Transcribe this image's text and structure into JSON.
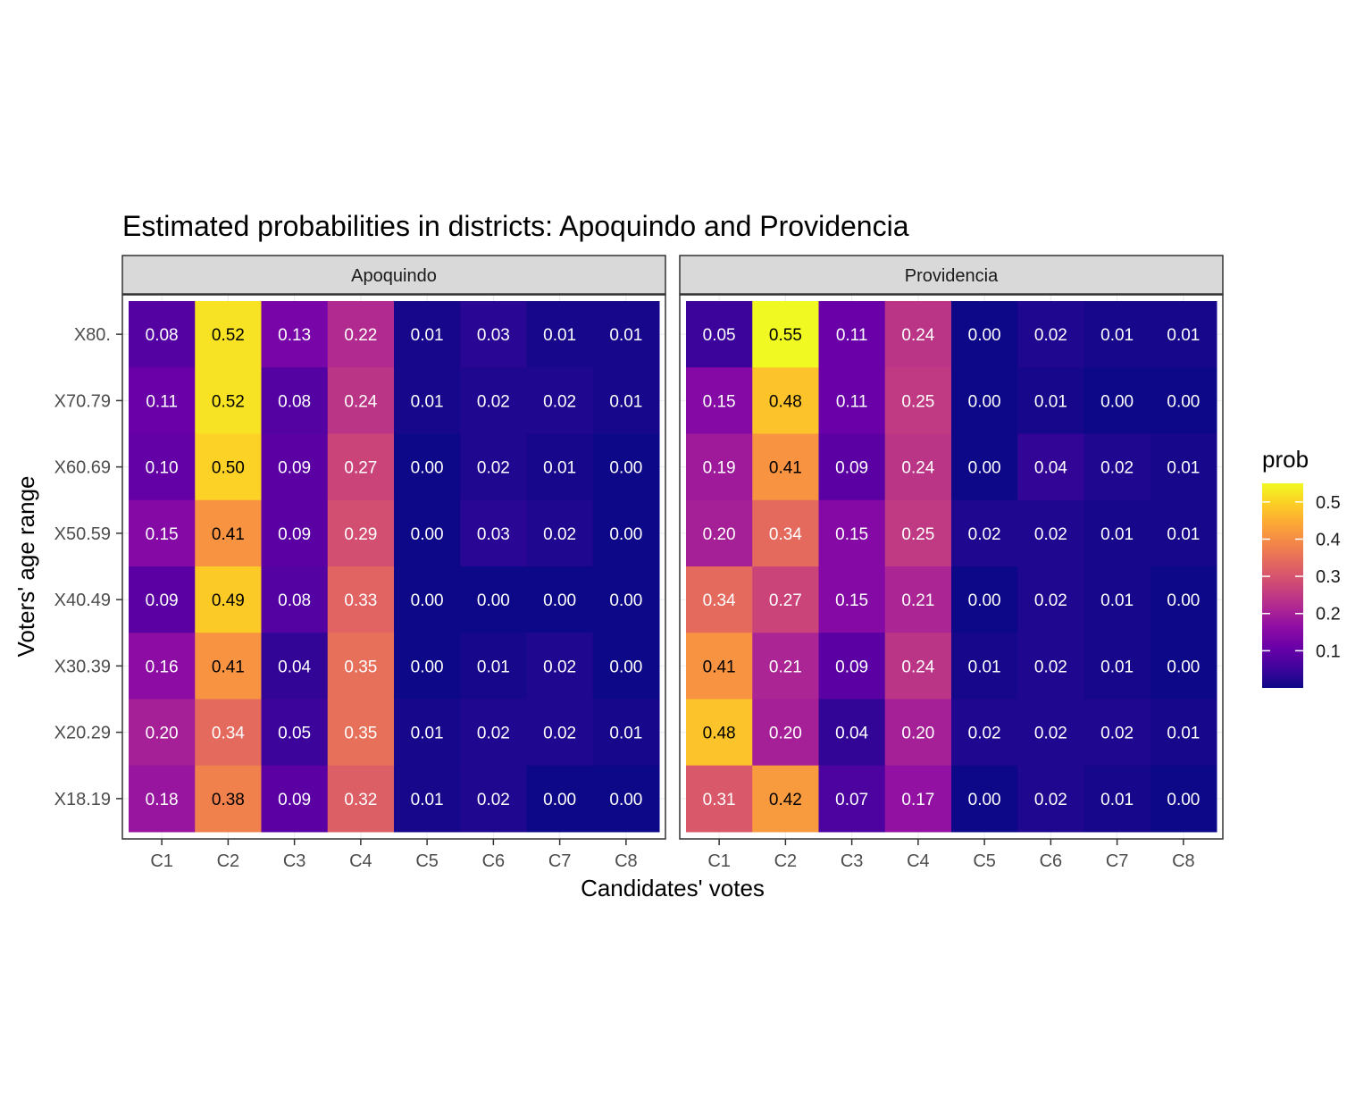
{
  "chart_data": {
    "type": "heatmap",
    "title": "Estimated probabilities in districts: Apoquindo and Providencia",
    "xlabel": "Candidates' votes",
    "ylabel": "Voters' age range",
    "x_categories": [
      "C1",
      "C2",
      "C3",
      "C4",
      "C5",
      "C6",
      "C7",
      "C8"
    ],
    "y_categories": [
      "X80.",
      "X70.79",
      "X60.69",
      "X50.59",
      "X40.49",
      "X30.39",
      "X20.29",
      "X18.19"
    ],
    "legend": {
      "title": "prob",
      "placement": "right",
      "ticks": [
        0.1,
        0.2,
        0.3,
        0.4,
        0.5
      ],
      "tick_labels": [
        "0.1",
        "0.2",
        "0.3",
        "0.4",
        "0.5"
      ],
      "range": [
        0.0,
        0.55
      ],
      "colormap": "plasma"
    },
    "panels": [
      {
        "name": "Apoquindo",
        "values": [
          [
            0.08,
            0.52,
            0.13,
            0.22,
            0.01,
            0.03,
            0.01,
            0.01
          ],
          [
            0.11,
            0.52,
            0.08,
            0.24,
            0.01,
            0.02,
            0.02,
            0.01
          ],
          [
            0.1,
            0.5,
            0.09,
            0.27,
            0.0,
            0.02,
            0.01,
            0.0
          ],
          [
            0.15,
            0.41,
            0.09,
            0.29,
            0.0,
            0.03,
            0.02,
            0.0
          ],
          [
            0.09,
            0.49,
            0.08,
            0.33,
            0.0,
            0.0,
            0.0,
            0.0
          ],
          [
            0.16,
            0.41,
            0.04,
            0.35,
            0.0,
            0.01,
            0.02,
            0.0
          ],
          [
            0.2,
            0.34,
            0.05,
            0.35,
            0.01,
            0.02,
            0.02,
            0.01
          ],
          [
            0.18,
            0.38,
            0.09,
            0.32,
            0.01,
            0.02,
            0.0,
            0.0
          ]
        ]
      },
      {
        "name": "Providencia",
        "values": [
          [
            0.05,
            0.55,
            0.11,
            0.24,
            0.0,
            0.02,
            0.01,
            0.01
          ],
          [
            0.15,
            0.48,
            0.11,
            0.25,
            0.0,
            0.01,
            0.0,
            0.0
          ],
          [
            0.19,
            0.41,
            0.09,
            0.24,
            0.0,
            0.04,
            0.02,
            0.01
          ],
          [
            0.2,
            0.34,
            0.15,
            0.25,
            0.02,
            0.02,
            0.01,
            0.01
          ],
          [
            0.34,
            0.27,
            0.15,
            0.21,
            0.0,
            0.02,
            0.01,
            0.0
          ],
          [
            0.41,
            0.21,
            0.09,
            0.24,
            0.01,
            0.02,
            0.01,
            0.0
          ],
          [
            0.48,
            0.2,
            0.04,
            0.2,
            0.02,
            0.02,
            0.02,
            0.01
          ],
          [
            0.31,
            0.42,
            0.07,
            0.17,
            0.0,
            0.02,
            0.01,
            0.0
          ]
        ]
      }
    ]
  }
}
